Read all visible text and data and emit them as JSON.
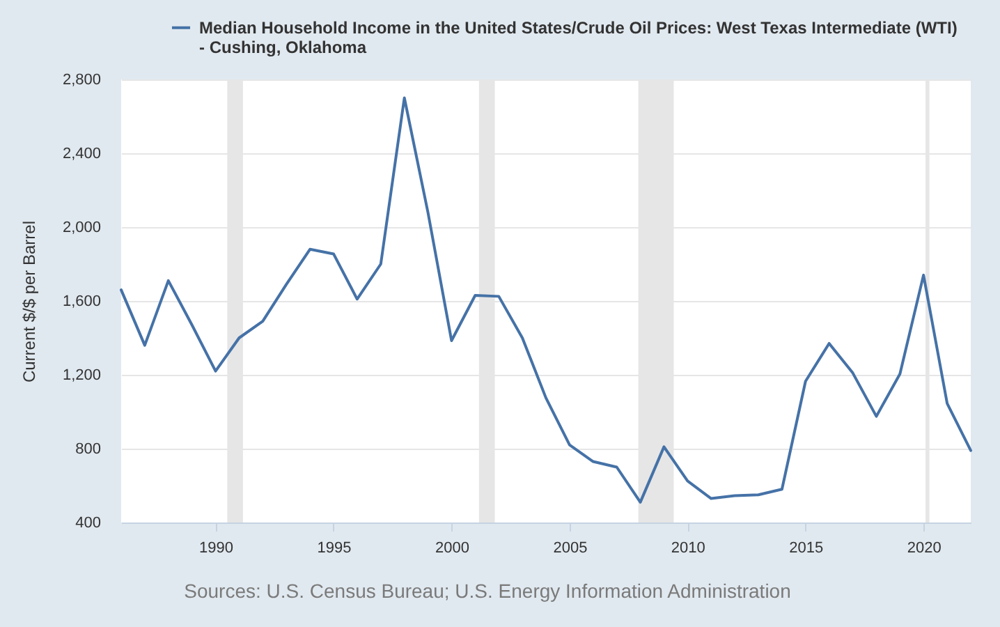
{
  "chart_data": {
    "type": "line",
    "x": [
      "1986",
      "1987",
      "1988",
      "1989",
      "1990",
      "1991",
      "1992",
      "1993",
      "1994",
      "1995",
      "1996",
      "1997",
      "1998",
      "1999",
      "2000",
      "2001",
      "2002",
      "2003",
      "2004",
      "2005",
      "2006",
      "2007",
      "2008",
      "2009",
      "2010",
      "2011",
      "2012",
      "2013",
      "2014",
      "2015",
      "2016",
      "2017",
      "2018",
      "2019",
      "2020",
      "2021",
      "2022"
    ],
    "series": [
      {
        "name": "Median Household Income in the United States/Crude Oil Prices: West Texas Intermediate (WTI) - Cushing, Oklahoma",
        "color": "#4572a7",
        "values": [
          1660,
          1360,
          1710,
          1470,
          1220,
          1400,
          1490,
          1690,
          1880,
          1855,
          1610,
          1800,
          2700,
          2080,
          1385,
          1630,
          1625,
          1400,
          1075,
          820,
          730,
          700,
          510,
          810,
          625,
          530,
          545,
          550,
          580,
          1165,
          1370,
          1210,
          975,
          1205,
          1740,
          1045,
          790
        ]
      }
    ],
    "ylabel": "Current $/$ per Barrel",
    "xlim": [
      "1986",
      "2022"
    ],
    "xticks": [
      "1990",
      "1995",
      "2000",
      "2005",
      "2010",
      "2015",
      "2020"
    ],
    "ylim": [
      400,
      2800
    ],
    "yticks": [
      400,
      800,
      {
        "value": 1200,
        "label": "1,200"
      },
      {
        "value": 1600,
        "label": "1,600"
      },
      {
        "value": 2000,
        "label": "2,000"
      },
      {
        "value": 2400,
        "label": "2,400"
      },
      {
        "value": 2800,
        "label": "2,800"
      }
    ],
    "grid": "y",
    "legend": "top left",
    "bands": [
      {
        "axis": "x",
        "from": "1990-07",
        "to": "1991-03",
        "color": "#e6e6e6"
      },
      {
        "axis": "x",
        "from": "2001-03",
        "to": "2001-11",
        "color": "#e6e6e6"
      },
      {
        "axis": "x",
        "from": "2007-12",
        "to": "2009-06",
        "color": "#e6e6e6"
      },
      {
        "axis": "x",
        "from": "2020-02",
        "to": "2020-04",
        "color": "#e6e6e6"
      }
    ],
    "annotations": [
      "Sources: U.S. Census Bureau; U.S. Energy Information Administration"
    ]
  }
}
